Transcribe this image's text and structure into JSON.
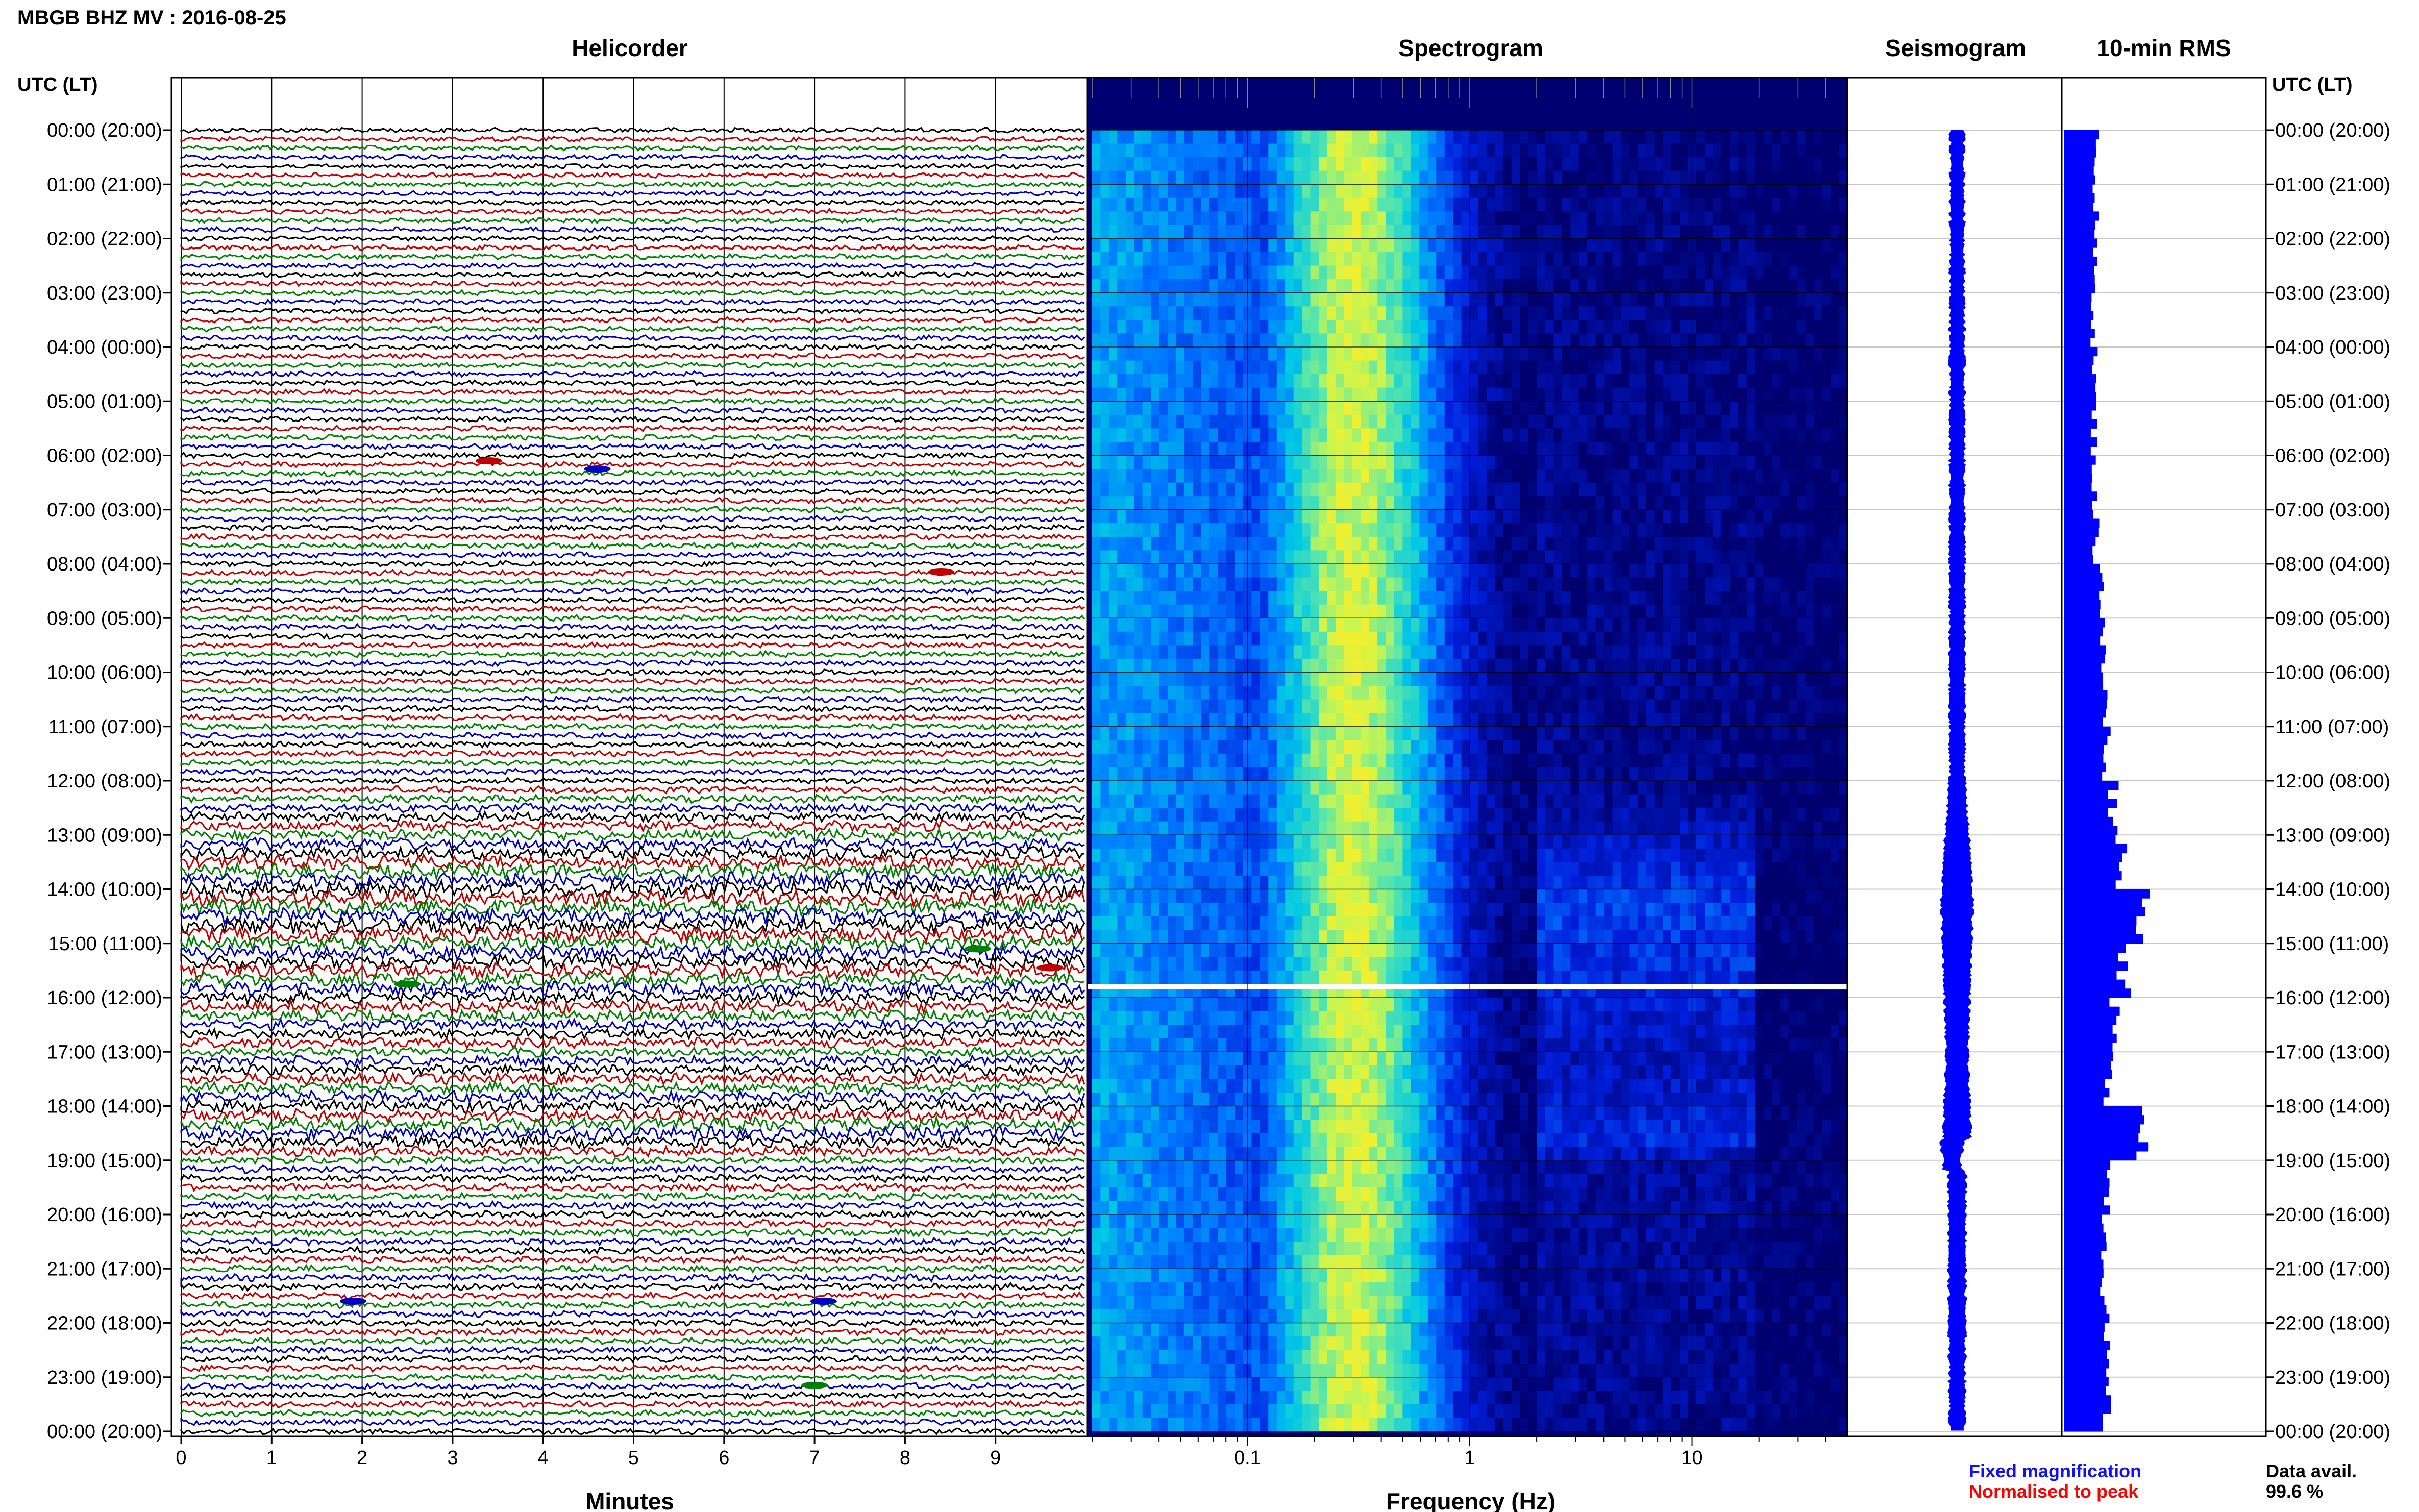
{
  "header": {
    "station_title": "MBGB BHZ MV : 2016-08-25",
    "utc_label_left": "UTC (LT)",
    "utc_label_right": "UTC (LT)"
  },
  "panels": {
    "helicorder": {
      "title": "Helicorder",
      "xlabel": "Minutes"
    },
    "spectrogram": {
      "title": "Spectrogram",
      "xlabel": "Frequency (Hz)"
    },
    "seismogram": {
      "title": "Seismogram"
    },
    "rms": {
      "title": "10-min RMS"
    }
  },
  "legend": {
    "fixed_label": "Fixed magnification",
    "normalised_label": "Normalised to peak",
    "fixed_color": "#1010ff",
    "normalised_color": "#ff0000"
  },
  "data_avail": {
    "label": "Data avail.",
    "value": "99.6 %"
  },
  "colors": {
    "trace_cycle": [
      "#000000",
      "#c00000",
      "#008000",
      "#0000c0"
    ],
    "rms_bar": "#0000ff",
    "seismogram": "#0000ff"
  },
  "chart_data": [
    {
      "type": "line",
      "panel": "helicorder",
      "x_ticks": [
        "0",
        "1",
        "2",
        "3",
        "4",
        "5",
        "6",
        "7",
        "8",
        "9"
      ],
      "xlim": [
        0,
        10
      ],
      "y_ticks": [
        "00:00 (20:00)",
        "01:00 (21:00)",
        "02:00 (22:00)",
        "03:00 (23:00)",
        "04:00 (00:00)",
        "05:00 (01:00)",
        "06:00 (02:00)",
        "07:00 (03:00)",
        "08:00 (04:00)",
        "09:00 (05:00)",
        "10:00 (06:00)",
        "11:00 (07:00)",
        "12:00 (08:00)",
        "13:00 (09:00)",
        "14:00 (10:00)",
        "15:00 (11:00)",
        "16:00 (12:00)",
        "17:00 (13:00)",
        "18:00 (14:00)",
        "19:00 (15:00)",
        "20:00 (16:00)",
        "21:00 (17:00)",
        "22:00 (18:00)",
        "23:00 (19:00)",
        "00:00 (20:00)"
      ],
      "traces_per_hour": 6,
      "minutes_per_trace": 10,
      "events": [
        {
          "hour": 6.1,
          "minute": 3.4,
          "color": "#c00000"
        },
        {
          "hour": 6.25,
          "minute": 4.6,
          "color": "#0000c0"
        },
        {
          "hour": 8.15,
          "minute": 8.4,
          "color": "#c00000"
        },
        {
          "hour": 15.1,
          "minute": 8.8,
          "color": "#008000"
        },
        {
          "hour": 15.45,
          "minute": 9.6,
          "color": "#c00000"
        },
        {
          "hour": 15.75,
          "minute": 2.5,
          "color": "#008000"
        },
        {
          "hour": 21.6,
          "minute": 1.9,
          "color": "#0000c0"
        },
        {
          "hour": 21.6,
          "minute": 7.1,
          "color": "#0000c0"
        },
        {
          "hour": 23.15,
          "minute": 7.0,
          "color": "#008000"
        }
      ]
    },
    {
      "type": "heatmap",
      "panel": "spectrogram",
      "x_scale": "log",
      "xlim": [
        0.02,
        50
      ],
      "x_ticks": [
        "0.1",
        "1",
        "10"
      ],
      "y_range_hours": [
        0,
        24
      ],
      "data_gap_hours": [
        15.75,
        15.85
      ],
      "band_peak_hz": 0.3
    },
    {
      "type": "line",
      "panel": "seismogram",
      "amplitude_profile": [
        {
          "hour": 0,
          "amp": 0.03
        },
        {
          "hour": 12,
          "amp": 0.05
        },
        {
          "hour": 13,
          "amp": 0.15
        },
        {
          "hour": 14.2,
          "amp": 0.25
        },
        {
          "hour": 15.5,
          "amp": 0.2
        },
        {
          "hour": 17,
          "amp": 0.12
        },
        {
          "hour": 18.5,
          "amp": 0.2
        },
        {
          "hour": 19,
          "amp": 0.08
        },
        {
          "hour": 24,
          "amp": 0.05
        }
      ]
    },
    {
      "type": "bar",
      "panel": "rms",
      "interval_minutes": 10,
      "hourly_rms_relative": [
        0.34,
        0.32,
        0.31,
        0.31,
        0.31,
        0.31,
        0.31,
        0.33,
        0.39,
        0.39,
        0.42,
        0.44,
        0.51,
        0.6,
        0.83,
        0.61,
        0.51,
        0.46,
        0.84,
        0.45,
        0.43,
        0.42,
        0.42,
        0.44
      ],
      "peaks": [
        {
          "hour": 14.2,
          "value": 0.82
        },
        {
          "hour": 18.4,
          "value": 0.8
        }
      ]
    }
  ]
}
